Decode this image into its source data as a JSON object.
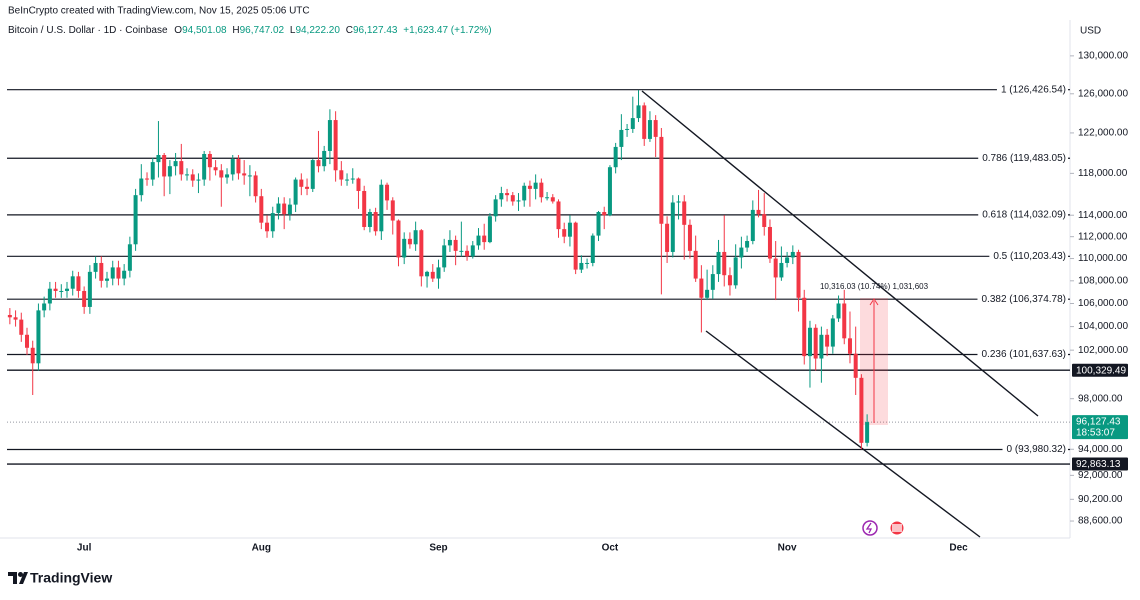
{
  "header": {
    "credit": "BeInCrypto created with TradingView.com, Nov 15, 2025 05:06 UTC"
  },
  "chart_data": {
    "type": "candlestick",
    "symbol": "Bitcoin / U.S. Dollar · 1D · Coinbase",
    "ohlc_readout": [
      {
        "key": "O",
        "value": "94,501.08"
      },
      {
        "key": "H",
        "value": "96,747.02"
      },
      {
        "key": "L",
        "value": "94,222.20"
      },
      {
        "key": "C",
        "value": "96,127.43"
      }
    ],
    "change": "+1,623.47 (+1.72%)",
    "currency": "USD",
    "up_color": "#089981",
    "down_color": "#f23645",
    "log_scale": true,
    "grid": false,
    "ylim": [
      87370,
      133900
    ],
    "yticks": [
      {
        "value": 130000,
        "label": "130,000.00"
      },
      {
        "value": 126000,
        "label": "126,000.00"
      },
      {
        "value": 122000,
        "label": "122,000.00"
      },
      {
        "value": 118000,
        "label": "118,000.00"
      },
      {
        "value": 114000,
        "label": "114,000.00"
      },
      {
        "value": 112000,
        "label": "112,000.00"
      },
      {
        "value": 110000,
        "label": "110,000.00"
      },
      {
        "value": 108000,
        "label": "108,000.00"
      },
      {
        "value": 106000,
        "label": "106,000.00"
      },
      {
        "value": 104000,
        "label": "104,000.00"
      },
      {
        "value": 102000,
        "label": "102,000.00"
      },
      {
        "value": 98000,
        "label": "98,000.00"
      },
      {
        "value": 94000,
        "label": "94,000.00"
      },
      {
        "value": 92000,
        "label": "92,000.00"
      },
      {
        "value": 90200,
        "label": "90,200.00"
      },
      {
        "value": 88600,
        "label": "88,600.00"
      }
    ],
    "categories": [
      null,
      null,
      null,
      null,
      null,
      null,
      null,
      null,
      null,
      null,
      null,
      null,
      null,
      "Jul",
      null,
      null,
      null,
      null,
      null,
      null,
      null,
      null,
      null,
      null,
      null,
      null,
      null,
      null,
      null,
      null,
      null,
      null,
      null,
      null,
      null,
      null,
      null,
      null,
      null,
      null,
      null,
      null,
      null,
      null,
      "Aug",
      null,
      null,
      null,
      null,
      null,
      null,
      null,
      null,
      null,
      null,
      null,
      null,
      null,
      null,
      null,
      null,
      null,
      null,
      null,
      null,
      null,
      null,
      null,
      null,
      null,
      null,
      null,
      null,
      null,
      null,
      "Sep",
      null,
      null,
      null,
      null,
      null,
      null,
      null,
      null,
      null,
      null,
      null,
      null,
      null,
      null,
      null,
      null,
      null,
      null,
      null,
      null,
      null,
      null,
      null,
      null,
      null,
      null,
      null,
      null,
      null,
      "Oct",
      null,
      null,
      null,
      null,
      null,
      null,
      null,
      null,
      null,
      null,
      null,
      null,
      null,
      null,
      null,
      null,
      null,
      null,
      null,
      null,
      null,
      null,
      null,
      null,
      null,
      null,
      null,
      null,
      null,
      null,
      "Nov",
      null,
      null,
      null,
      null,
      null,
      null,
      null,
      null,
      null,
      null,
      null,
      null,
      null,
      null,
      null,
      null,
      null,
      null,
      null,
      null,
      null,
      null,
      null,
      null,
      null,
      null,
      null,
      null,
      null,
      "Dec",
      null,
      null,
      null,
      null,
      null,
      null,
      null,
      null,
      null,
      null,
      null,
      null,
      null,
      null,
      null,
      null,
      null,
      null,
      null
    ],
    "open": [
      105000,
      104800,
      104600,
      103300,
      102200,
      100900,
      105400,
      106000,
      107300,
      107100,
      107100,
      107300,
      108400,
      107100,
      105700,
      108800,
      109600,
      108000,
      108200,
      109200,
      108200,
      108900,
      111300,
      115900,
      117500,
      117400,
      119100,
      119800,
      117700,
      118700,
      119200,
      117900,
      117900,
      117300,
      117400,
      119900,
      118600,
      118300,
      117600,
      117900,
      119400,
      118000,
      117800,
      117800,
      115800,
      113300,
      112500,
      114200,
      115100,
      114100,
      115000,
      117400,
      116700,
      116500,
      119300,
      118700,
      120200,
      123300,
      118300,
      117400,
      117400,
      117500,
      116300,
      112900,
      114300,
      112500,
      116900,
      115400,
      113500,
      110100,
      111800,
      111300,
      112600,
      108400,
      108800,
      108200,
      109200,
      111200,
      111700,
      110700,
      110700,
      110200,
      111200,
      112100,
      111500,
      113900,
      115500,
      116100,
      115900,
      115300,
      115400,
      116800,
      116500,
      117100,
      115700,
      115700,
      115300,
      112700,
      112000,
      113300,
      109000,
      109600,
      109600,
      112100,
      114300,
      114000,
      118600,
      120600,
      122300,
      122400,
      123500,
      124800,
      121400,
      123300,
      121600,
      113200,
      110600,
      115200,
      115300,
      113100,
      110700,
      108200,
      106500,
      107200,
      108600,
      110600,
      108500,
      107600,
      110100,
      111000,
      111600,
      114500,
      114100,
      112900,
      110000,
      108300,
      109600,
      110100,
      110600,
      106500,
      101500,
      103900,
      101300,
      103300,
      102300,
      104700,
      106000,
      103000,
      101700,
      99700,
      94501.08,
      null,
      null,
      null,
      null,
      null,
      null,
      null,
      null,
      null,
      null,
      null,
      null,
      null,
      null,
      null,
      null,
      null,
      null,
      null,
      null,
      null,
      null,
      null,
      null,
      null,
      null,
      null,
      null,
      null,
      null,
      null,
      null,
      null,
      null,
      null
    ],
    "high": [
      105600,
      105400,
      105200,
      103900,
      102800,
      106000,
      106600,
      107900,
      107900,
      107700,
      107900,
      108900,
      108800,
      107500,
      109400,
      110200,
      110200,
      108800,
      109800,
      109800,
      109500,
      112000,
      116500,
      118900,
      118100,
      119500,
      123200,
      120000,
      119300,
      120000,
      120900,
      118500,
      118400,
      118000,
      120200,
      120200,
      119300,
      118900,
      118500,
      119800,
      119800,
      119300,
      118800,
      118200,
      116500,
      114000,
      114800,
      115700,
      115700,
      115600,
      117600,
      118000,
      117500,
      119400,
      122200,
      120700,
      124400,
      124200,
      119200,
      118000,
      118500,
      117600,
      116800,
      114600,
      114700,
      117400,
      117100,
      115700,
      113600,
      112400,
      112400,
      113400,
      112700,
      108900,
      109500,
      109900,
      111800,
      112600,
      112100,
      113400,
      111200,
      111600,
      112800,
      113200,
      114200,
      115900,
      116700,
      116500,
      116200,
      116100,
      117100,
      117300,
      117900,
      117500,
      116200,
      116000,
      115500,
      113300,
      114000,
      113400,
      110300,
      110000,
      112300,
      114400,
      114800,
      118800,
      121000,
      123900,
      122900,
      125700,
      126400,
      125100,
      124200,
      123800,
      122500,
      113900,
      115900,
      115900,
      115900,
      113600,
      112100,
      109400,
      109000,
      109400,
      111700,
      114000,
      109200,
      111300,
      112000,
      112100,
      115400,
      116400,
      116100,
      113600,
      111600,
      111100,
      110600,
      111200,
      110800,
      107200,
      104500,
      104200,
      104000,
      103800,
      105000,
      106700,
      107200,
      105300,
      104000,
      100000,
      96747.02,
      null,
      null,
      null,
      null,
      null,
      null,
      null,
      null,
      null,
      null,
      null,
      null,
      null,
      null,
      null,
      null,
      null,
      null,
      null,
      null,
      null,
      null,
      null,
      null,
      null,
      null,
      null,
      null,
      null,
      null,
      null,
      null,
      null,
      null,
      null
    ],
    "low": [
      104200,
      104000,
      102700,
      101600,
      98300,
      100300,
      104800,
      105400,
      106500,
      106500,
      106500,
      106700,
      106500,
      105100,
      105100,
      108200,
      107400,
      107400,
      107600,
      107600,
      107600,
      108300,
      110700,
      115300,
      116800,
      116800,
      117600,
      115800,
      116000,
      117800,
      117300,
      117300,
      116700,
      116100,
      116800,
      117300,
      117800,
      114800,
      117000,
      117300,
      117400,
      116900,
      115800,
      115200,
      112700,
      111900,
      111900,
      113600,
      112700,
      113500,
      114300,
      115900,
      115900,
      116200,
      118100,
      118200,
      118900,
      117200,
      116800,
      116800,
      117000,
      114600,
      112600,
      112400,
      112100,
      111700,
      114500,
      112200,
      109300,
      109500,
      110900,
      110700,
      107500,
      107400,
      107900,
      107300,
      108800,
      110600,
      109400,
      110200,
      109800,
      110000,
      110800,
      110800,
      111400,
      113400,
      114800,
      115300,
      114900,
      114400,
      114800,
      114800,
      115500,
      115200,
      115400,
      115100,
      111900,
      111400,
      111100,
      108600,
      108700,
      109100,
      109300,
      111600,
      112700,
      113900,
      118000,
      119300,
      121600,
      122000,
      123100,
      120700,
      121100,
      119600,
      106800,
      109600,
      110100,
      113600,
      109900,
      110000,
      107900,
      103500,
      106300,
      106400,
      107900,
      107500,
      106700,
      107300,
      109100,
      110600,
      111300,
      113800,
      112100,
      109600,
      106300,
      108000,
      109200,
      109500,
      105300,
      100800,
      98900,
      100300,
      99300,
      101500,
      101700,
      104400,
      102500,
      100900,
      98300,
      94000,
      94222.2,
      null,
      null,
      null,
      null,
      null,
      null,
      null,
      null,
      null,
      null,
      null,
      null,
      null,
      null,
      null,
      null,
      null,
      null,
      null,
      null,
      null,
      null,
      null,
      null,
      null,
      null,
      null,
      null,
      null,
      null,
      null,
      null,
      null,
      null,
      null
    ],
    "close": [
      104800,
      104600,
      103300,
      102200,
      100900,
      105400,
      106000,
      107300,
      107100,
      107100,
      107300,
      108400,
      107100,
      105700,
      108800,
      109600,
      108000,
      108200,
      109200,
      108200,
      108900,
      111300,
      115900,
      117500,
      117400,
      119100,
      119800,
      117700,
      118700,
      119200,
      117900,
      117900,
      117300,
      117400,
      119900,
      118600,
      118300,
      117600,
      117900,
      119400,
      118000,
      117800,
      117800,
      115800,
      113300,
      112500,
      114200,
      115100,
      114100,
      115000,
      117400,
      116700,
      116500,
      119300,
      118700,
      120200,
      123300,
      118300,
      117400,
      117400,
      117500,
      116300,
      112900,
      114300,
      112500,
      116900,
      115400,
      113500,
      110100,
      111800,
      111300,
      112600,
      108400,
      108800,
      108200,
      109200,
      111200,
      111700,
      110700,
      110700,
      110200,
      111200,
      112100,
      111500,
      113900,
      115500,
      116100,
      115900,
      115300,
      115400,
      116800,
      116500,
      117100,
      115700,
      115700,
      115300,
      112700,
      112000,
      113300,
      109000,
      109600,
      109600,
      112100,
      114300,
      114000,
      118600,
      120600,
      122300,
      122400,
      123500,
      124800,
      121400,
      123300,
      121600,
      113200,
      110600,
      115200,
      115300,
      113100,
      110700,
      108200,
      106500,
      107200,
      108600,
      110600,
      108500,
      107600,
      110100,
      111000,
      111600,
      114500,
      114100,
      112900,
      110000,
      108300,
      109600,
      110100,
      110600,
      106500,
      101500,
      103900,
      101300,
      103300,
      102300,
      104700,
      106000,
      103000,
      101700,
      99700,
      94500,
      96127.43,
      null,
      null,
      null,
      null,
      null,
      null,
      null,
      null,
      null,
      null,
      null,
      null,
      null,
      null,
      null,
      null,
      null,
      null,
      null,
      null,
      null,
      null,
      null,
      null,
      null,
      null,
      null,
      null,
      null,
      null,
      null,
      null,
      null,
      null,
      null
    ],
    "fib_levels": [
      {
        "value": 126426.54,
        "label": "1 (126,426.54)"
      },
      {
        "value": 119483.05,
        "label": "0.786 (119,483.05)"
      },
      {
        "value": 114032.09,
        "label": "0.618 (114,032.09)"
      },
      {
        "value": 110203.43,
        "label": "0.5 (110,203.43)"
      },
      {
        "value": 106374.78,
        "label": "0.382 (106,374.78)"
      },
      {
        "value": 101637.63,
        "label": "0.236 (101,637.63)"
      },
      {
        "value": 93980.32,
        "label": "0 (93,980.32)"
      }
    ],
    "price_lines": [
      {
        "value": 100329.49,
        "label": "100,329.49"
      },
      {
        "value": 92863.13,
        "label": "92,863.13"
      }
    ],
    "last_price": {
      "value": 96127.43,
      "label": "96,127.43",
      "countdown": "18:53:07"
    },
    "measure_label": "10,316.03 (10.74%) 1,031,603"
  },
  "footer": {
    "logo": "TradingView"
  }
}
